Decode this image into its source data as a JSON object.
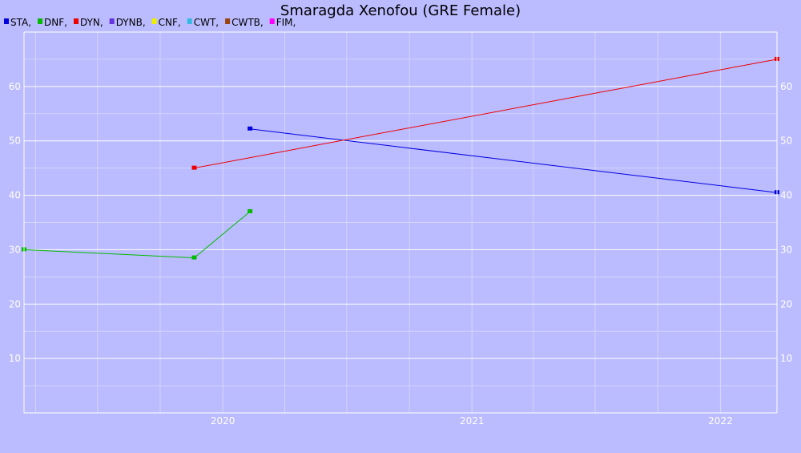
{
  "chart_data": {
    "type": "line",
    "title": "Smaragda Xenofou (GRE Female)",
    "xlabel": "",
    "ylabel": "",
    "x_axis": {
      "type": "date",
      "range": [
        "2019-03-15",
        "2022-03-25"
      ],
      "ticks": [
        {
          "label": "2020",
          "value": "2020-01-01"
        },
        {
          "label": "2021",
          "value": "2021-01-01"
        },
        {
          "label": "2022",
          "value": "2022-01-01"
        }
      ]
    },
    "y_axis": {
      "range": [
        0,
        70
      ],
      "ticks": [
        10,
        20,
        30,
        40,
        50,
        60
      ],
      "tick_labels": [
        "10",
        "20",
        "30",
        "40",
        "50",
        "60"
      ]
    },
    "grid": true,
    "legend_position": "top-left",
    "legend": [
      {
        "label": "STA,",
        "color": "#0000dd"
      },
      {
        "label": "DNF,",
        "color": "#00bb00"
      },
      {
        "label": "DYN,",
        "color": "#ee0000"
      },
      {
        "label": "DYNB,",
        "color": "#6633dd"
      },
      {
        "label": "CNF,",
        "color": "#eeee00"
      },
      {
        "label": "CWT,",
        "color": "#33bbdd"
      },
      {
        "label": "CWTB,",
        "color": "#994411"
      },
      {
        "label": "FIM,",
        "color": "#ff00ff"
      }
    ],
    "series": [
      {
        "name": "STA",
        "color": "#0000dd",
        "points": [
          {
            "x": "2020-02-10",
            "y": 52.2
          },
          {
            "x": "2022-03-25",
            "y": 40.5
          }
        ]
      },
      {
        "name": "DNF",
        "color": "#00bb00",
        "points": [
          {
            "x": "2019-03-15",
            "y": 30
          },
          {
            "x": "2019-11-20",
            "y": 28.5
          },
          {
            "x": "2020-02-10",
            "y": 37
          }
        ]
      },
      {
        "name": "DYN",
        "color": "#ee0000",
        "points": [
          {
            "x": "2019-11-20",
            "y": 45
          },
          {
            "x": "2022-03-25",
            "y": 65
          }
        ]
      }
    ]
  }
}
